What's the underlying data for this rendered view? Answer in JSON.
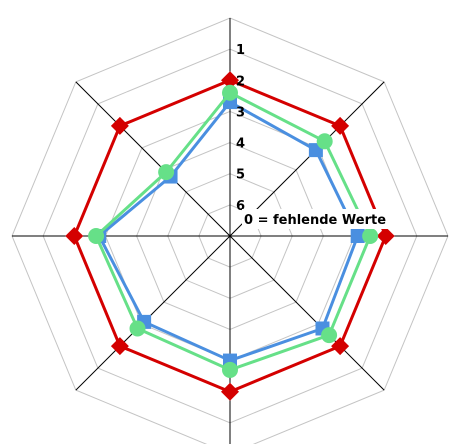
{
  "chart_data": {
    "type": "radar",
    "axes_count": 8,
    "scale_rings": 7,
    "tick_labels": [
      "1",
      "2",
      "3",
      "4",
      "5",
      "6"
    ],
    "zero_label": "0 = fehlende Werte",
    "series": [
      {
        "color": "#d40000",
        "marker": "diamond",
        "values": [
          2,
          2,
          2,
          2,
          2,
          2,
          2,
          2
        ]
      },
      {
        "color": "#66e088",
        "marker": "circle",
        "values": [
          2.4,
          2.7,
          2.5,
          2.5,
          2.7,
          2.8,
          2.7,
          4.1
        ]
      },
      {
        "color": "#4a8fe0",
        "marker": "square",
        "values": [
          2.7,
          3.1,
          2.9,
          2.8,
          3.0,
          3.1,
          2.8,
          4.3
        ]
      }
    ],
    "grid": true
  }
}
